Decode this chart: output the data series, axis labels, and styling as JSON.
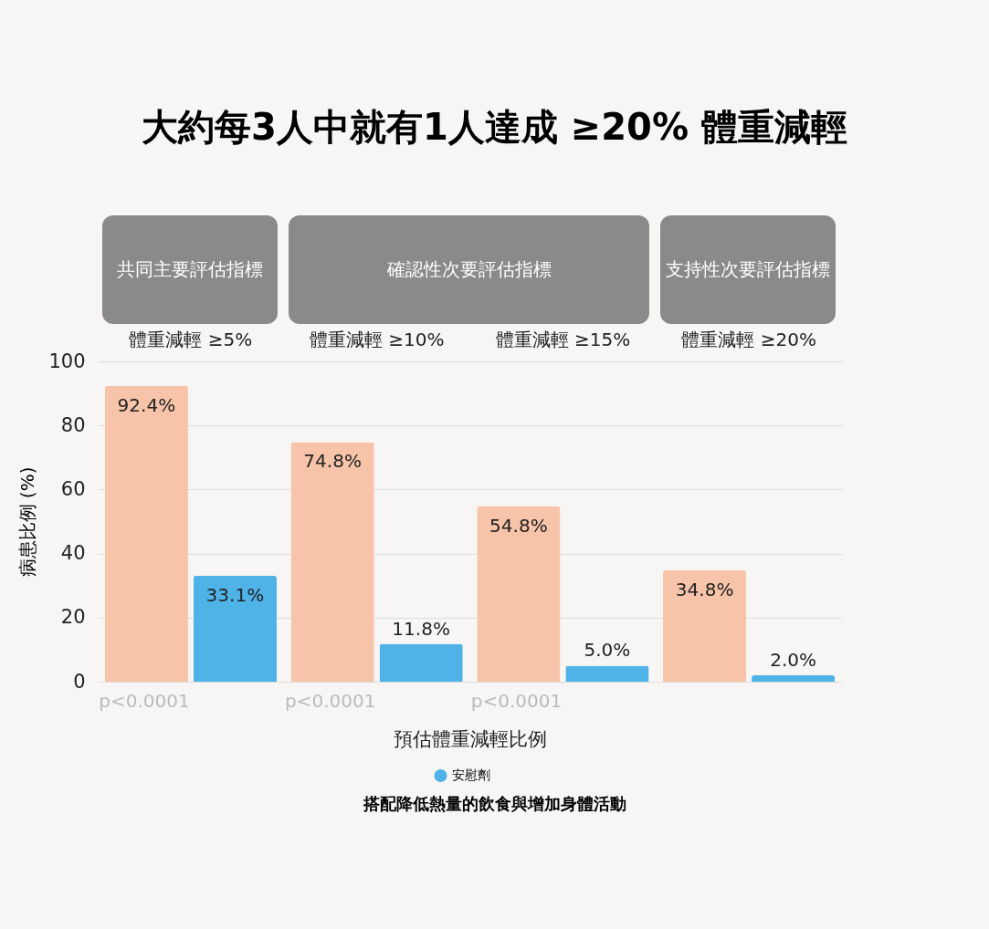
{
  "chart_data": {
    "type": "bar",
    "title": "大約每3人中就有1人達成 ≥20% 體重減輕",
    "xlabel": "預估體重減輕比例",
    "ylabel": "病患比例 (%)",
    "categories": [
      "體重減輕 ≥5%",
      "體重減輕 ≥10%",
      "體重減輕 ≥15%",
      "體重減輕 ≥20%"
    ],
    "series": [
      {
        "color": "#f7c4a9",
        "values": [
          92.4,
          74.8,
          54.8,
          34.8
        ],
        "value_labels": [
          "92.4%",
          "74.8%",
          "54.8%",
          "34.8%"
        ]
      },
      {
        "name": "安慰劑",
        "color": "#4fb3e8",
        "values": [
          33.1,
          11.8,
          5.0,
          2.0
        ],
        "value_labels": [
          "33.1%",
          "11.8%",
          "5.0%",
          "2.0%"
        ]
      }
    ],
    "ylim": [
      0,
      100
    ],
    "yticks": [
      0,
      20,
      40,
      60,
      80,
      100
    ],
    "grid": "y",
    "legend": "bottom",
    "annotations": [
      "共同主要評估指標",
      "確認性次要評估指標",
      "支持性次要評估指標",
      "p<0.0001",
      "p<0.0001",
      "p<0.0001",
      "搭配降低熱量的飲食與增加身體活動"
    ]
  }
}
